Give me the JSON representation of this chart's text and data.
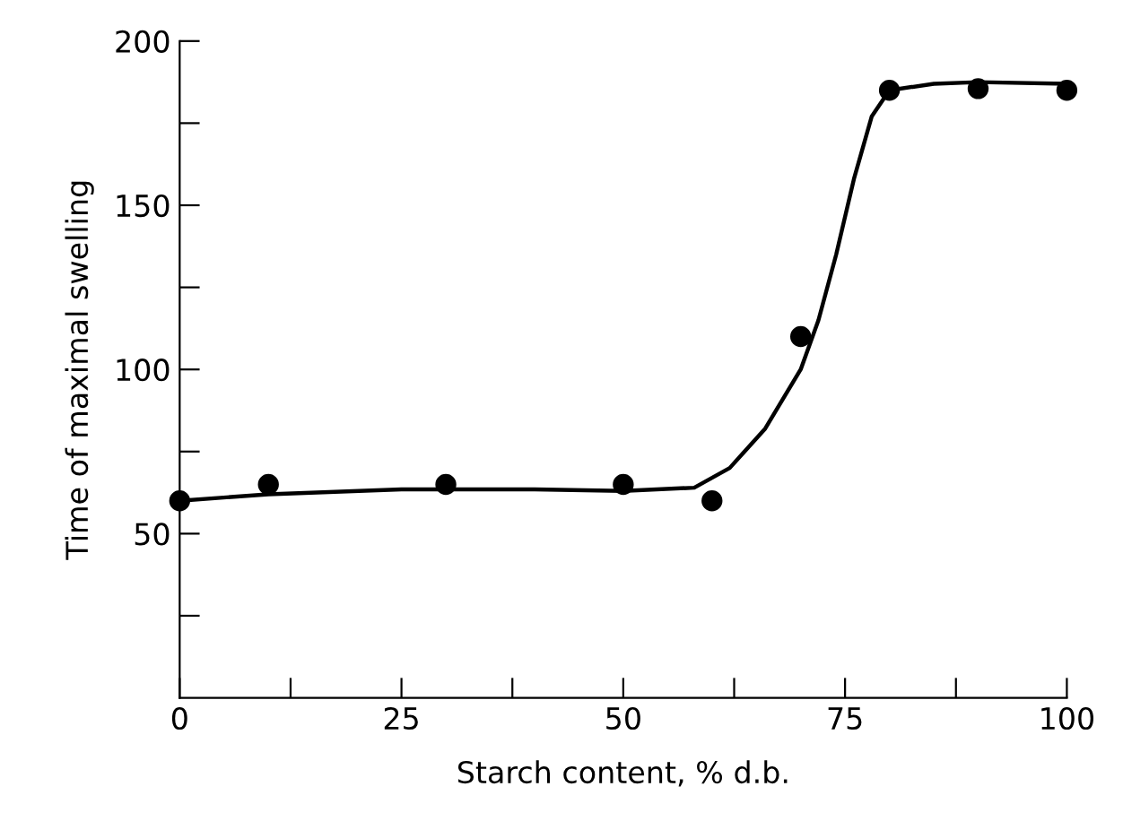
{
  "chart_data": {
    "type": "scatter",
    "xlabel": "Starch content, % d.b.",
    "ylabel": "Time of maximal swelling",
    "xlim": [
      0,
      100
    ],
    "ylim": [
      0,
      200
    ],
    "xticks": [
      0,
      {
        "value": 12.5,
        "label": null
      },
      25,
      {
        "value": 37.5,
        "label": null
      },
      50,
      {
        "value": 62.5,
        "label": null
      },
      75,
      {
        "value": 87.5,
        "label": null
      },
      100
    ],
    "yticks": [
      {
        "value": 25,
        "label": null
      },
      50,
      {
        "value": 75,
        "label": null
      },
      100,
      {
        "value": 125,
        "label": null
      },
      150,
      {
        "value": 175,
        "label": null
      },
      200
    ],
    "grid": false,
    "legend": false,
    "series": [
      {
        "color": "#000000",
        "marker": "circle",
        "x": [
          0,
          10,
          30,
          50,
          60,
          70,
          80,
          90,
          100
        ],
        "values": [
          60,
          65,
          65,
          65,
          60,
          110,
          185,
          185.5,
          185
        ]
      },
      {
        "type": "line",
        "color": "#000000",
        "marker": "none",
        "line_style": "solid",
        "x": [
          0,
          10,
          25,
          40,
          50,
          58,
          62,
          66,
          70,
          72,
          74,
          76,
          78,
          80,
          85,
          90,
          100
        ],
        "values": [
          60,
          62,
          63.5,
          63.5,
          63,
          64,
          70,
          82,
          100,
          115,
          135,
          158,
          177,
          185,
          187,
          187.5,
          187
        ]
      }
    ]
  }
}
